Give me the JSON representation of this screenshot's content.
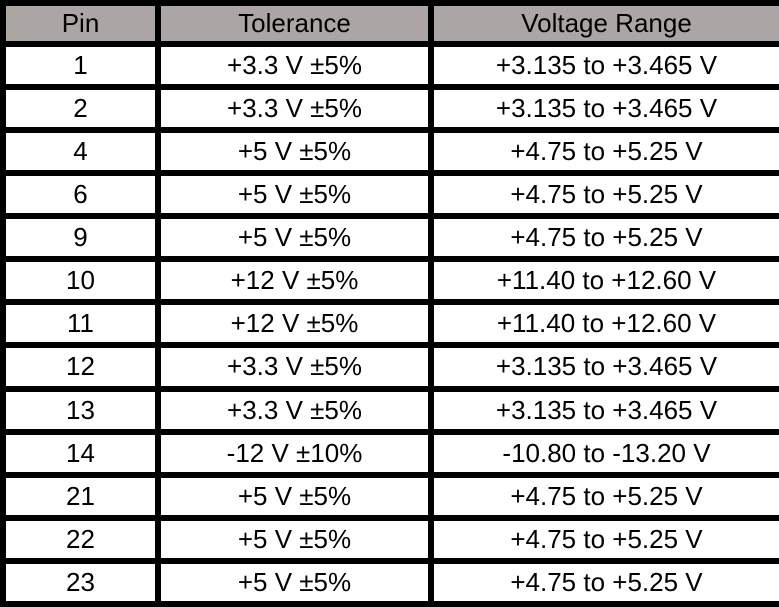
{
  "table": {
    "columns": [
      {
        "key": "pin",
        "label": "Pin"
      },
      {
        "key": "tolerance",
        "label": "Tolerance"
      },
      {
        "key": "voltage_range",
        "label": "Voltage Range"
      }
    ],
    "rows": [
      {
        "pin": "1",
        "tolerance": "+3.3 V ±5%",
        "voltage_range": "+3.135 to +3.465 V"
      },
      {
        "pin": "2",
        "tolerance": "+3.3 V ±5%",
        "voltage_range": "+3.135 to +3.465 V"
      },
      {
        "pin": "4",
        "tolerance": "+5 V ±5%",
        "voltage_range": "+4.75 to +5.25 V"
      },
      {
        "pin": "6",
        "tolerance": "+5 V ±5%",
        "voltage_range": "+4.75 to +5.25 V"
      },
      {
        "pin": "9",
        "tolerance": "+5 V ±5%",
        "voltage_range": "+4.75 to +5.25 V"
      },
      {
        "pin": "10",
        "tolerance": "+12 V ±5%",
        "voltage_range": "+11.40 to +12.60 V"
      },
      {
        "pin": "11",
        "tolerance": "+12 V ±5%",
        "voltage_range": "+11.40 to +12.60 V"
      },
      {
        "pin": "12",
        "tolerance": "+3.3 V ±5%",
        "voltage_range": "+3.135 to +3.465 V"
      },
      {
        "pin": "13",
        "tolerance": "+3.3 V ±5%",
        "voltage_range": "+3.135 to +3.465 V"
      },
      {
        "pin": "14",
        "tolerance": "-12 V ±10%",
        "voltage_range": "-10.80 to -13.20 V"
      },
      {
        "pin": "21",
        "tolerance": "+5 V ±5%",
        "voltage_range": "+4.75 to +5.25 V"
      },
      {
        "pin": "22",
        "tolerance": "+5 V ±5%",
        "voltage_range": "+4.75 to +5.25 V"
      },
      {
        "pin": "23",
        "tolerance": "+5 V ±5%",
        "voltage_range": "+4.75 to +5.25 V"
      }
    ]
  },
  "colors": {
    "header_bg": "#aba5a3",
    "border": "#000000",
    "row_bg": "#ffffff",
    "text": "#000000"
  }
}
